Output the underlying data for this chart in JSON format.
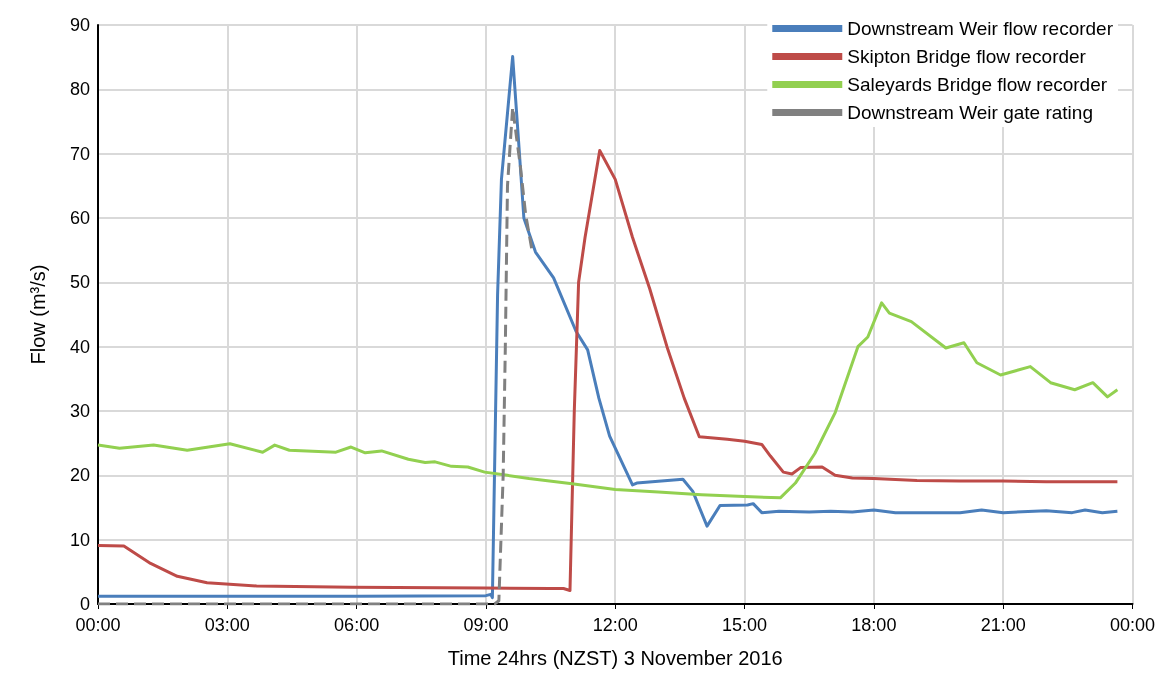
{
  "chart_data": {
    "type": "line",
    "xlabel": "Time 24hrs (NZST) 3 November 2016",
    "ylabel": "Flow (m³/s)",
    "xlim": [
      0,
      24
    ],
    "xticks": [
      {
        "value": 0,
        "label": "00:00"
      },
      {
        "value": 3,
        "label": "03:00"
      },
      {
        "value": 6,
        "label": "06:00"
      },
      {
        "value": 9,
        "label": "09:00"
      },
      {
        "value": 12,
        "label": "12:00"
      },
      {
        "value": 15,
        "label": "15:00"
      },
      {
        "value": 18,
        "label": "18:00"
      },
      {
        "value": 21,
        "label": "21:00"
      },
      {
        "value": 24,
        "label": "00:00"
      }
    ],
    "ylim": [
      0,
      90
    ],
    "yticks": [
      0,
      10,
      20,
      30,
      40,
      50,
      60,
      70,
      80,
      90
    ],
    "grid": true,
    "legend": "top right",
    "line_style": "solid",
    "series": [
      {
        "name": "Downstream Weir flow recorder",
        "color": "#4a7ebb",
        "x": [
          0,
          3,
          6,
          9,
          9.11,
          9.15,
          9.27,
          9.36,
          9.62,
          9.76,
          9.88,
          10.15,
          10.57,
          11.09,
          11.36,
          11.62,
          11.87,
          12.4,
          12.5,
          13.57,
          13.8,
          14.13,
          14.43,
          15.07,
          15.2,
          15.4,
          15.8,
          16.5,
          17,
          17.5,
          18,
          18.5,
          19,
          20,
          20.5,
          21,
          22,
          22.6,
          22.9,
          23.3,
          23.65
        ],
        "values": [
          1.2,
          1.2,
          1.2,
          1.3,
          1.5,
          1.0,
          48,
          66,
          85.1,
          71.7,
          60,
          54.7,
          50.7,
          42.4,
          39.5,
          32,
          26.1,
          18.5,
          18.8,
          19.4,
          17.5,
          12.1,
          15.3,
          15.4,
          15.6,
          14.2,
          14.4,
          14.3,
          14.4,
          14.3,
          14.6,
          14.2,
          14.2,
          14.2,
          14.6,
          14.2,
          14.5,
          14.2,
          14.6,
          14.2,
          14.4
        ]
      },
      {
        "name": "Skipton Bridge flow recorder",
        "color": "#be4b48",
        "x": [
          0,
          0.6,
          1.22,
          1.84,
          2.53,
          3.68,
          5.9,
          8.97,
          10.5,
          10.8,
          10.95,
          11.05,
          11.15,
          11.3,
          11.64,
          12.0,
          12.4,
          12.8,
          13.2,
          13.6,
          13.95,
          14.6,
          15.0,
          15.4,
          15.6,
          15.9,
          16.1,
          16.3,
          16.8,
          17.1,
          17.5,
          18,
          19,
          20,
          21,
          22,
          23.65
        ],
        "values": [
          9.1,
          9.0,
          6.3,
          4.3,
          3.3,
          2.8,
          2.6,
          2.5,
          2.4,
          2.4,
          2.1,
          30,
          50,
          57,
          70.5,
          66,
          57,
          49,
          40,
          32,
          26,
          25.6,
          25.3,
          24.8,
          23,
          20.5,
          20.2,
          21.2,
          21.3,
          20,
          19.6,
          19.5,
          19.2,
          19.1,
          19.1,
          19.0,
          19.0
        ]
      },
      {
        "name": "Saleyards Bridge flow recorder",
        "color": "#92d050",
        "x": [
          0,
          0.5,
          1.29,
          2.07,
          3.06,
          3.82,
          4.1,
          4.44,
          5.52,
          5.87,
          6.2,
          6.58,
          7.2,
          7.59,
          7.82,
          8.2,
          8.58,
          8.97,
          9.5,
          10,
          11,
          12,
          13,
          14,
          15,
          15.83,
          16.18,
          16.63,
          17.1,
          17.63,
          17.86,
          18.18,
          18.36,
          18.87,
          19.67,
          20.09,
          20.39,
          20.94,
          21.63,
          22.1,
          22.66,
          23.08,
          23.42,
          23.65
        ],
        "values": [
          24.7,
          24.2,
          24.7,
          23.9,
          24.9,
          23.6,
          24.7,
          23.9,
          23.6,
          24.4,
          23.5,
          23.8,
          22.5,
          22.0,
          22.1,
          21.4,
          21.3,
          20.5,
          20.0,
          19.5,
          18.7,
          17.8,
          17.4,
          17,
          16.7,
          16.5,
          18.8,
          23.4,
          29.7,
          40,
          41.5,
          46.8,
          45.2,
          43.9,
          39.8,
          40.6,
          37.5,
          35.6,
          36.9,
          34.4,
          33.3,
          34.4,
          32.2,
          33.3
        ]
      },
      {
        "name": "Downstream Weir gate rating",
        "color": "#808080",
        "line_style": "dashed",
        "x": [
          0,
          9.2,
          9.3,
          9.4,
          9.45,
          9.5,
          9.62,
          9.72,
          9.8,
          9.92,
          10.06
        ],
        "values": [
          0,
          0,
          0.5,
          20,
          40,
          65,
          77.2,
          72,
          68,
          60.6,
          55.3
        ]
      }
    ]
  }
}
